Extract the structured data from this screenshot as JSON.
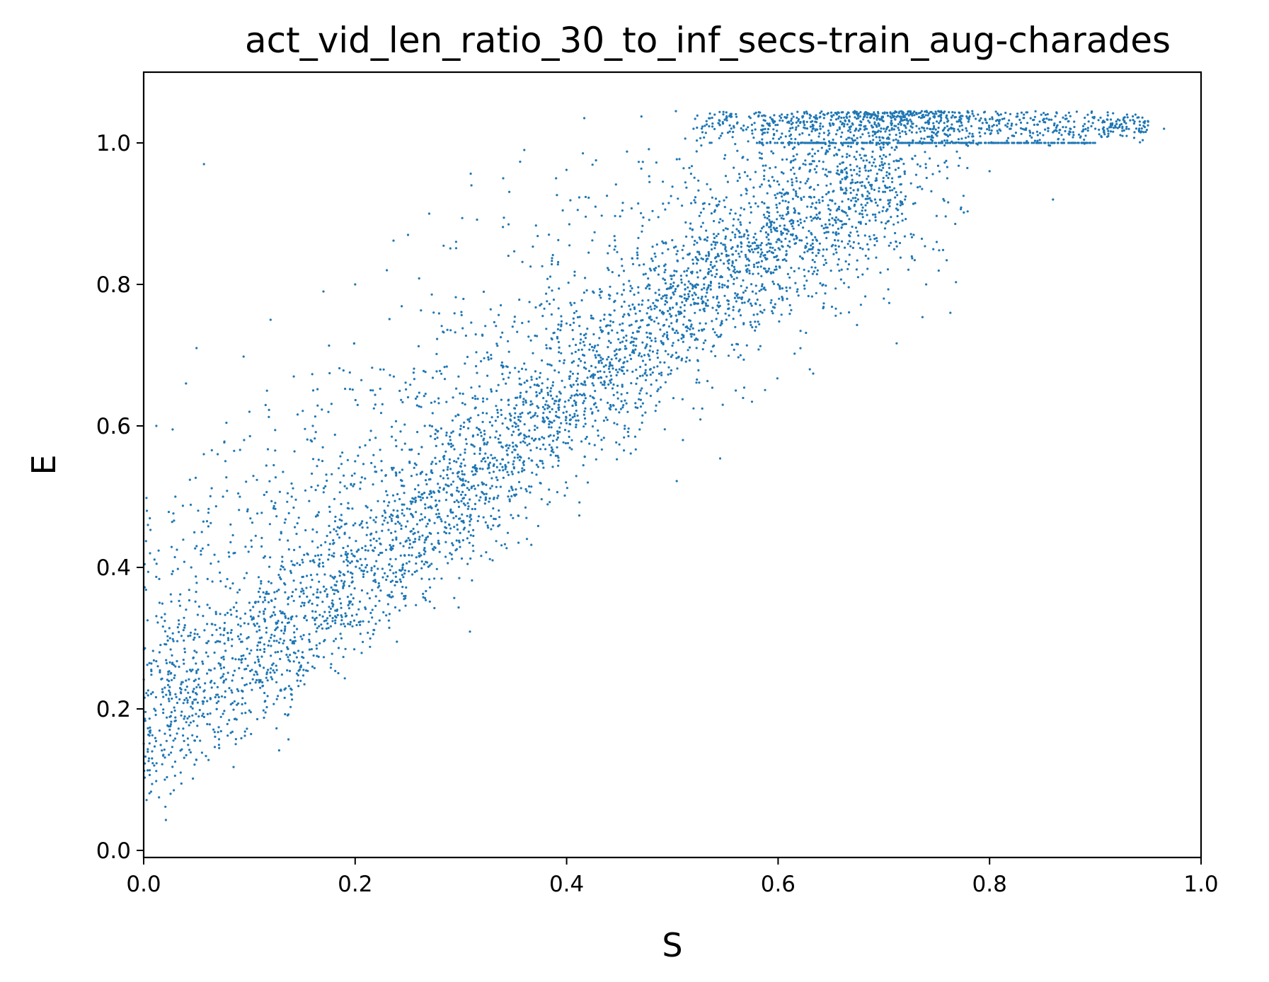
{
  "chart_data": {
    "type": "scatter",
    "title": "act_vid_len_ratio_30_to_inf_secs-train_aug-charades",
    "xlabel": "S",
    "ylabel": "E",
    "xlim": [
      0.0,
      1.0
    ],
    "ylim": [
      -0.01,
      1.1
    ],
    "xticks": [
      0.0,
      0.2,
      0.4,
      0.6,
      0.8,
      1.0
    ],
    "xtick_labels": [
      "0.0",
      "0.2",
      "0.4",
      "0.6",
      "0.8",
      "1.0"
    ],
    "yticks": [
      0.0,
      0.2,
      0.4,
      0.6,
      0.8,
      1.0
    ],
    "ytick_labels": [
      "0.0",
      "0.2",
      "0.4",
      "0.6",
      "0.8",
      "1.0"
    ],
    "grid": false,
    "legend": "none",
    "color": "#1f77b4",
    "series": [
      {
        "points": [
          [
            0.003,
            0.48
          ],
          [
            0.004,
            0.46
          ],
          [
            0.006,
            0.42
          ],
          [
            0.005,
            0.13
          ],
          [
            0.008,
            0.14
          ],
          [
            0.01,
            0.12
          ],
          [
            0.012,
            0.6
          ],
          [
            0.015,
            0.28
          ],
          [
            0.02,
            0.1
          ],
          [
            0.025,
            0.22
          ],
          [
            0.03,
            0.5
          ],
          [
            0.035,
            0.11
          ],
          [
            0.04,
            0.66
          ],
          [
            0.05,
            0.71
          ],
          [
            0.057,
            0.97
          ],
          [
            0.06,
            0.25
          ],
          [
            0.07,
            0.56
          ],
          [
            0.08,
            0.3
          ],
          [
            0.09,
            0.27
          ],
          [
            0.1,
            0.35
          ],
          [
            0.01,
            0.2
          ],
          [
            0.02,
            0.23
          ],
          [
            0.03,
            0.26
          ],
          [
            0.04,
            0.24
          ],
          [
            0.05,
            0.28
          ],
          [
            0.06,
            0.32
          ],
          [
            0.07,
            0.22
          ],
          [
            0.015,
            0.35
          ],
          [
            0.025,
            0.3
          ],
          [
            0.045,
            0.4
          ],
          [
            0.055,
            0.45
          ],
          [
            0.065,
            0.38
          ],
          [
            0.075,
            0.5
          ],
          [
            0.085,
            0.42
          ],
          [
            0.095,
            0.58
          ],
          [
            0.1,
            0.62
          ],
          [
            0.11,
            0.3
          ],
          [
            0.12,
            0.33
          ],
          [
            0.13,
            0.45
          ],
          [
            0.14,
            0.5
          ],
          [
            0.12,
            0.75
          ],
          [
            0.14,
            0.22
          ],
          [
            0.15,
            0.35
          ],
          [
            0.16,
            0.6
          ],
          [
            0.17,
            0.79
          ],
          [
            0.18,
            0.42
          ],
          [
            0.19,
            0.38
          ],
          [
            0.2,
            0.55
          ],
          [
            0.2,
            0.8
          ],
          [
            0.21,
            0.4
          ],
          [
            0.22,
            0.45
          ],
          [
            0.23,
            0.82
          ],
          [
            0.24,
            0.48
          ],
          [
            0.25,
            0.87
          ],
          [
            0.26,
            0.5
          ],
          [
            0.27,
            0.9
          ],
          [
            0.28,
            0.55
          ],
          [
            0.29,
            0.58
          ],
          [
            0.3,
            0.6
          ],
          [
            0.31,
            0.94
          ],
          [
            0.32,
            0.52
          ],
          [
            0.33,
            0.41
          ],
          [
            0.34,
            0.95
          ],
          [
            0.35,
            0.55
          ],
          [
            0.36,
            0.99
          ],
          [
            0.37,
            0.6
          ],
          [
            0.38,
            0.63
          ],
          [
            0.39,
            0.95
          ],
          [
            0.4,
            0.62
          ],
          [
            0.41,
            0.65
          ],
          [
            0.42,
            0.52
          ],
          [
            0.43,
            0.7
          ],
          [
            0.44,
            0.72
          ],
          [
            0.45,
            0.68
          ],
          [
            0.46,
            0.7
          ],
          [
            0.47,
            0.65
          ],
          [
            0.48,
            0.75
          ],
          [
            0.49,
            0.78
          ],
          [
            0.5,
            0.7
          ],
          [
            0.51,
            0.58
          ],
          [
            0.52,
            1.02
          ],
          [
            0.53,
            0.8
          ],
          [
            0.54,
            1.04
          ],
          [
            0.55,
            0.85
          ],
          [
            0.56,
            0.65
          ],
          [
            0.57,
            0.82
          ],
          [
            0.58,
            1.0
          ],
          [
            0.6,
            0.8
          ],
          [
            0.61,
            1.03
          ],
          [
            0.62,
            0.9
          ],
          [
            0.63,
            0.68
          ],
          [
            0.64,
            1.02
          ],
          [
            0.66,
            0.88
          ],
          [
            0.68,
            0.85
          ],
          [
            0.7,
            1.02
          ],
          [
            0.72,
            0.92
          ],
          [
            0.74,
            0.8
          ],
          [
            0.76,
            0.95
          ],
          [
            0.78,
            1.03
          ],
          [
            0.8,
            0.96
          ],
          [
            0.82,
            1.02
          ],
          [
            0.84,
            1.0
          ],
          [
            0.86,
            0.92
          ],
          [
            0.88,
            1.03
          ],
          [
            0.9,
            1.02
          ],
          [
            0.93,
            1.04
          ],
          [
            0.95,
            1.03
          ],
          [
            0.965,
            1.02
          ],
          [
            0.7,
            0.78
          ],
          [
            0.75,
            0.86
          ]
        ],
        "density_bands": [
          {
            "count": 3000,
            "x_range": [
              0.0,
              0.72
            ],
            "y_mid": [
              0.18,
              0.96
            ],
            "curve": 1.25,
            "spread": 0.055
          },
          {
            "count": 1800,
            "x_range": [
              0.0,
              0.78
            ],
            "y_mid": [
              0.3,
              1.02
            ],
            "curve": 1.1,
            "spread": 0.11
          },
          {
            "count": 700,
            "x_range": [
              0.52,
              0.95
            ],
            "y_mid": [
              1.025,
              1.025
            ],
            "curve": 1.0,
            "spread": 0.012
          },
          {
            "count": 280,
            "x_range": [
              0.58,
              0.9
            ],
            "y_mid": [
              1.0,
              1.0
            ],
            "curve": 1.0,
            "spread": 0.0
          }
        ]
      }
    ]
  }
}
